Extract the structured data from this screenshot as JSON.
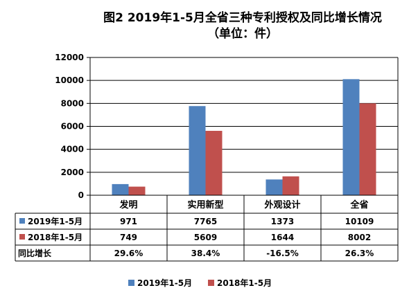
{
  "chart_data": {
    "type": "bar",
    "title": "图2 2019年1-5月全省三种专利授权及同比增长情况",
    "subtitle": "（单位：件）",
    "categories": [
      "发明",
      "实用新型",
      "外观设计",
      "全省"
    ],
    "series": [
      {
        "name": "2019年1-5月",
        "values": [
          971,
          7765,
          1373,
          10109
        ],
        "color": "#4F81BD"
      },
      {
        "name": "2018年1-5月",
        "values": [
          749,
          5609,
          1644,
          8002
        ],
        "color": "#C0504D"
      }
    ],
    "yticks": [
      0,
      2000,
      4000,
      6000,
      8000,
      10000,
      12000
    ],
    "ylim": [
      0,
      12000
    ],
    "grid": true,
    "table": {
      "series_labels": [
        "2019年1-5月",
        "2018年1-5月"
      ],
      "values_text": [
        [
          "971",
          "7765",
          "1373",
          "10109"
        ],
        [
          "749",
          "5609",
          "1644",
          "8002"
        ]
      ],
      "growth_label": "同比增长",
      "growth": [
        "29.6%",
        "38.4%",
        "-16.5%",
        "26.3%"
      ]
    },
    "legend": {
      "position": "bottom",
      "entries": [
        "2019年1-5月",
        "2018年1-5月"
      ]
    }
  }
}
